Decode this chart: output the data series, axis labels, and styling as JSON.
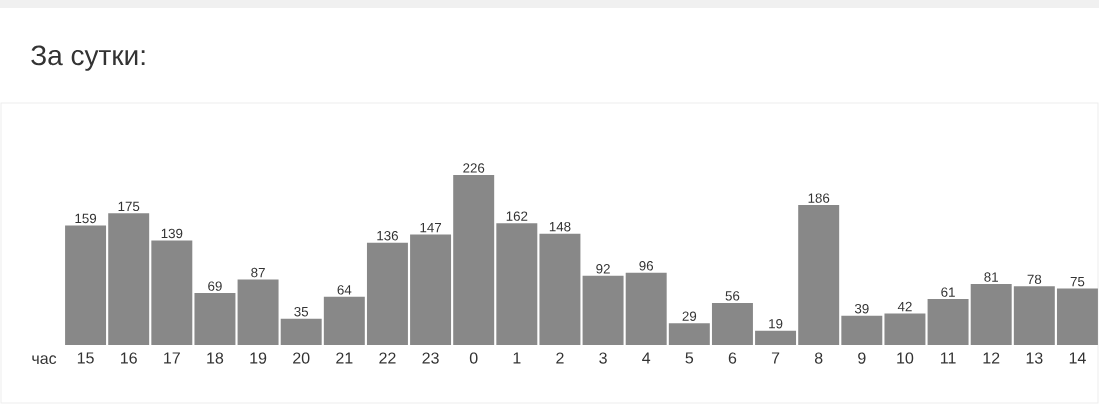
{
  "chart_data": {
    "type": "bar",
    "title": "За сутки:",
    "xlabel": "час",
    "categories": [
      "15",
      "16",
      "17",
      "18",
      "19",
      "20",
      "21",
      "22",
      "23",
      "0",
      "1",
      "2",
      "3",
      "4",
      "5",
      "6",
      "7",
      "8",
      "9",
      "10",
      "11",
      "12",
      "13",
      "14"
    ],
    "values": [
      159,
      175,
      139,
      69,
      87,
      35,
      64,
      136,
      147,
      226,
      162,
      148,
      92,
      96,
      29,
      56,
      19,
      186,
      39,
      42,
      61,
      81,
      78,
      75
    ],
    "color": "#888888",
    "data_labels": true
  }
}
